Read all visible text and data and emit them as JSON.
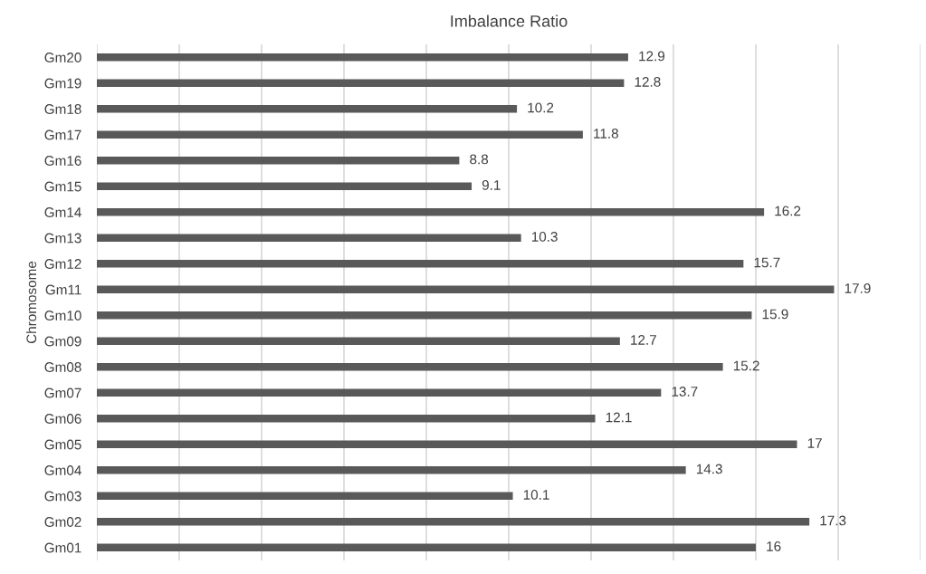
{
  "chart_data": {
    "type": "bar",
    "orientation": "horizontal",
    "title": "Imbalance Ratio",
    "ylabel": "Chromosome",
    "categories": [
      "Gm20",
      "Gm19",
      "Gm18",
      "Gm17",
      "Gm16",
      "Gm15",
      "Gm14",
      "Gm13",
      "Gm12",
      "Gm11",
      "Gm10",
      "Gm09",
      "Gm08",
      "Gm07",
      "Gm06",
      "Gm05",
      "Gm04",
      "Gm03",
      "Gm02",
      "Gm01"
    ],
    "values": [
      12.9,
      12.8,
      10.2,
      11.8,
      8.8,
      9.1,
      16.2,
      10.3,
      15.7,
      17.9,
      15.9,
      12.7,
      15.2,
      13.7,
      12.1,
      17,
      14.3,
      10.1,
      17.3,
      16
    ],
    "color": "#595959",
    "xlim": [
      0,
      20
    ],
    "xticks": [
      {
        "value": 0,
        "label": null
      },
      {
        "value": 2,
        "label": null
      },
      {
        "value": 4,
        "label": null
      },
      {
        "value": 6,
        "label": null
      },
      {
        "value": 8,
        "label": null
      },
      {
        "value": 10,
        "label": null
      },
      {
        "value": 12,
        "label": null
      },
      {
        "value": 14,
        "label": null
      },
      {
        "value": 16,
        "label": null
      },
      {
        "value": 18,
        "label": null
      },
      {
        "value": 20,
        "label": null
      }
    ],
    "grid": "x",
    "tick_labels": "y",
    "data_labels": true
  }
}
